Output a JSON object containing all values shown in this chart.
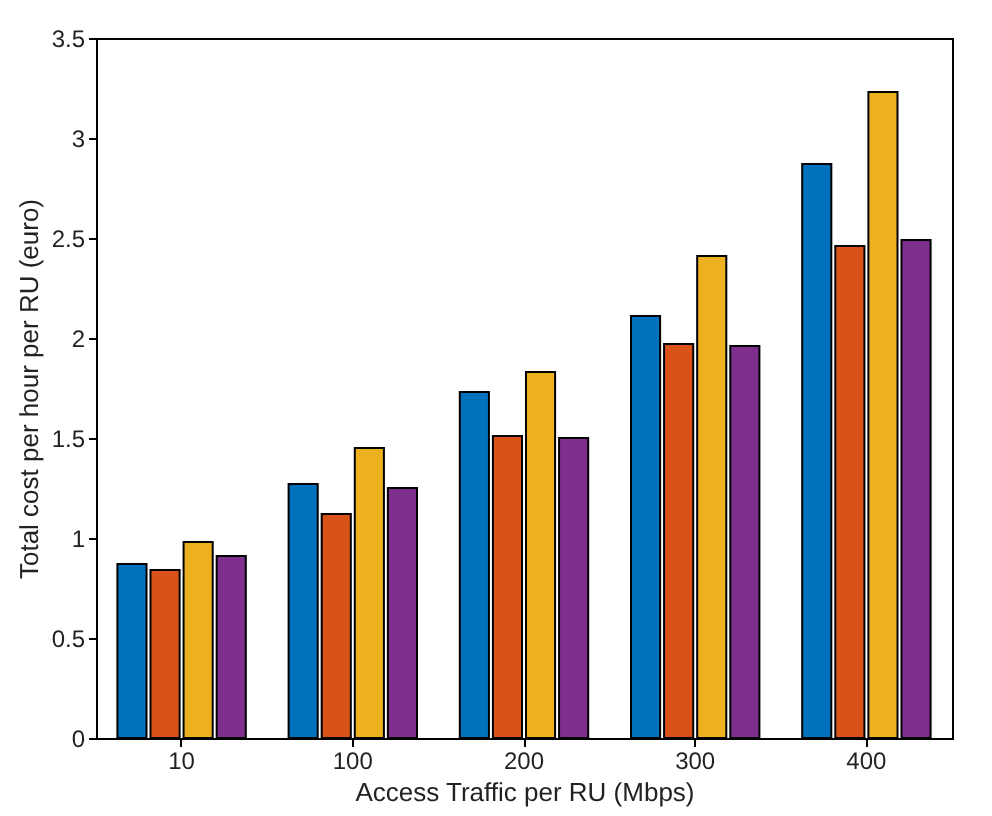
{
  "chart_data": {
    "type": "bar",
    "xlabel": "Access Traffic per RU (Mbps)",
    "ylabel": "Total cost per hour per RU (euro)",
    "categories": [
      "10",
      "100",
      "200",
      "300",
      "400"
    ],
    "series": [
      {
        "color": "#0072bd",
        "values": [
          0.87,
          1.27,
          1.73,
          2.11,
          2.87
        ]
      },
      {
        "color": "#d95319",
        "values": [
          0.84,
          1.12,
          1.51,
          1.97,
          2.46
        ]
      },
      {
        "color": "#edb120",
        "values": [
          0.98,
          1.45,
          1.83,
          2.41,
          3.23
        ]
      },
      {
        "color": "#7e2f8e",
        "values": [
          0.91,
          1.25,
          1.5,
          1.96,
          2.49
        ]
      }
    ],
    "ylim": [
      0,
      3.5
    ],
    "yticks": [
      0,
      0.5,
      1,
      1.5,
      2,
      2.5,
      3,
      3.5
    ],
    "grid": false,
    "legend": false
  }
}
